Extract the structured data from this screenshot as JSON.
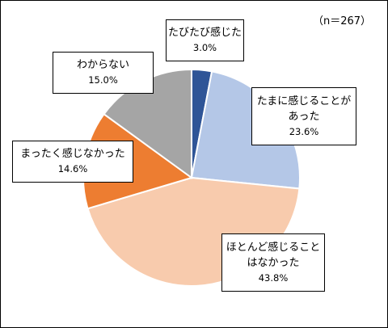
{
  "chart_data": {
    "type": "pie",
    "sample_size_label": "（n＝267）",
    "start_angle_deg": 0,
    "direction": "clockwise",
    "slices": [
      {
        "lines": [
          "たびたび感じた"
        ],
        "value_label": "3.0%",
        "value": 3.0,
        "color": "#2F5597"
      },
      {
        "lines": [
          "たまに感じることが",
          "あった"
        ],
        "value_label": "23.6%",
        "value": 23.6,
        "color": "#B4C7E7"
      },
      {
        "lines": [
          "ほとんど感じること",
          "はなかった"
        ],
        "value_label": "43.8%",
        "value": 43.8,
        "color": "#F8CBAD"
      },
      {
        "lines": [
          "まったく感じなかった"
        ],
        "value_label": "14.6%",
        "value": 14.6,
        "color": "#ED7D31"
      },
      {
        "lines": [
          "わからない"
        ],
        "value_label": "15.0%",
        "value": 15.0,
        "color": "#A5A5A5"
      }
    ]
  }
}
